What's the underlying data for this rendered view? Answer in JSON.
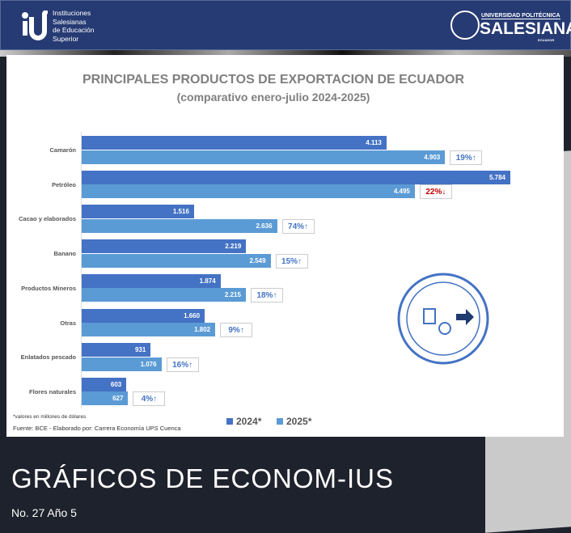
{
  "header": {
    "institution": "Instituciones\nSalesianas\nde Educación\nSuperior",
    "university_line1": "UNIVERSIDAD POLITÉCNICA",
    "university_line2": "SALESIANA",
    "university_line3": "ECUADOR"
  },
  "chart_data": {
    "type": "bar",
    "orientation": "horizontal",
    "title": "PRINCIPALES PRODUCTOS DE EXPORTACION DE ECUADOR",
    "subtitle": "(comparativo enero-julio 2024-2025)",
    "categories": [
      "Camarón",
      "Petróleo",
      "Cacao y elaborados",
      "Banano",
      "Productos Mineros",
      "Otras",
      "Enlatados pescado",
      "Flores naturales"
    ],
    "series": [
      {
        "name": "2024*",
        "color": "#4472c4",
        "values": [
          4113,
          5784,
          1516,
          2219,
          1874,
          1660,
          931,
          603
        ],
        "labels": [
          "4.113",
          "5.784",
          "1.516",
          "2.219",
          "1.874",
          "1.660",
          "931",
          "603"
        ]
      },
      {
        "name": "2025*",
        "color": "#5b9bd5",
        "values": [
          4903,
          4495,
          2636,
          2549,
          2215,
          1802,
          1076,
          627
        ],
        "labels": [
          "4.903",
          "4.495",
          "2.636",
          "2.549",
          "2.215",
          "1.802",
          "1.076",
          "627"
        ]
      }
    ],
    "changes": [
      "19%↑",
      "22%↓",
      "74%↑",
      "15%↑",
      "18%↑",
      "9%↑",
      "16%↑",
      "4%↑"
    ],
    "change_colors": {
      "up": "#4472c4",
      "down": "#c00000"
    },
    "note": "*valores en millones de dólares",
    "source": "Fuente: BCE - Elaborado por: Carrera Economía UPS Cuenca",
    "legend_position": "bottom"
  },
  "footer": {
    "title": "GRÁFICOS DE ECONOM-IUS",
    "issue": "No. 27 Año 5"
  }
}
